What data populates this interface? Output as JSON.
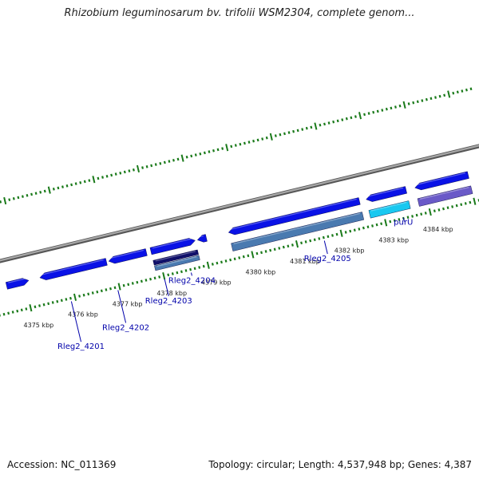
{
  "title": "Rhizobium leguminosarum bv. trifolii WSM2304, complete genom...",
  "footer": {
    "accession": "Accession: NC_011369",
    "summary": "Topology: circular; Length: 4,537,948 bp; Genes: 4,387"
  },
  "colors": {
    "tick_green": "#1a7a1a",
    "backbone": "#888888",
    "gene_blue": "#0a12e6",
    "gene_navy": "#10106a",
    "gene_steel": "#4a7ab0",
    "gene_cyan": "#19c8f0",
    "gene_violet": "#6a5ac8",
    "label_blue": "#0000aa"
  },
  "ticks": [
    {
      "kbp": 4375,
      "label": "4375 kbp"
    },
    {
      "kbp": 4376,
      "label": "4376 kbp"
    },
    {
      "kbp": 4377,
      "label": "4377 kbp"
    },
    {
      "kbp": 4378,
      "label": "4378 kbp"
    },
    {
      "kbp": 4379,
      "label": "4379 kbp"
    },
    {
      "kbp": 4380,
      "label": "4380 kbp"
    },
    {
      "kbp": 4381,
      "label": "4381 kbp"
    },
    {
      "kbp": 4382,
      "label": "4382 kbp"
    },
    {
      "kbp": 4383,
      "label": "4383 kbp"
    },
    {
      "kbp": 4384,
      "label": "4384 kbp"
    }
  ],
  "features": [
    {
      "start": 4374.6,
      "end": 4375.1,
      "strand": "+",
      "lane": 1,
      "color": "gene_blue"
    },
    {
      "start": 4375.35,
      "end": 4376.85,
      "strand": "-",
      "lane": 1,
      "color": "gene_blue"
    },
    {
      "start": 4376.9,
      "end": 4377.75,
      "strand": "-",
      "lane": 1,
      "color": "gene_blue"
    },
    {
      "start": 4377.85,
      "end": 4378.85,
      "strand": "+",
      "lane": 1,
      "color": "gene_blue"
    },
    {
      "start": 4378.9,
      "end": 4379.1,
      "strand": "-",
      "lane": 1,
      "color": "gene_blue"
    },
    {
      "start": 4379.6,
      "end": 4382.55,
      "strand": "-",
      "lane": 1,
      "color": "gene_blue"
    },
    {
      "start": 4382.7,
      "end": 4383.6,
      "strand": "-",
      "lane": 1,
      "color": "gene_blue"
    },
    {
      "start": 4383.8,
      "end": 4385.0,
      "strand": "-",
      "lane": 1,
      "color": "gene_blue"
    },
    {
      "start": 4377.85,
      "end": 4378.85,
      "strand": "",
      "lane": 2,
      "color": "gene_navy"
    },
    {
      "start": 4377.85,
      "end": 4378.85,
      "strand": "",
      "lane": 3,
      "color": "gene_steel"
    },
    {
      "start": 4379.6,
      "end": 4382.55,
      "strand": "",
      "lane": 2.6,
      "color": "gene_steel"
    },
    {
      "start": 4382.7,
      "end": 4383.6,
      "strand": "",
      "lane": 2.6,
      "color": "gene_cyan"
    },
    {
      "start": 4383.8,
      "end": 4385.0,
      "strand": "",
      "lane": 2.6,
      "color": "gene_violet"
    }
  ],
  "gene_labels": [
    {
      "text": "Rleg2_4201",
      "kbp": 4375.9
    },
    {
      "text": "Rleg2_4202",
      "kbp": 4376.95
    },
    {
      "text": "Rleg2_4203",
      "kbp": 4378.0
    },
    {
      "text": "Rleg2_4204",
      "kbp": 4378.6
    },
    {
      "text": "Rleg2_4205",
      "kbp": 4381.6
    },
    {
      "text": "purU",
      "kbp": 4383.4
    }
  ]
}
